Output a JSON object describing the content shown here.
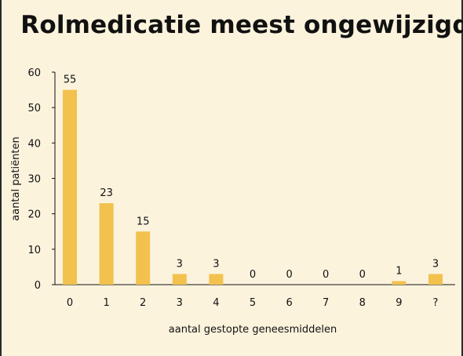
{
  "chart_data": {
    "type": "bar",
    "title": "Rolmedicatie meest ongewijzigd",
    "xlabel": "aantal gestopte geneesmiddelen",
    "ylabel": "aantal patiënten",
    "categories": [
      "0",
      "1",
      "2",
      "3",
      "4",
      "5",
      "6",
      "7",
      "8",
      "9",
      "?"
    ],
    "values": [
      55,
      23,
      15,
      3,
      3,
      0,
      0,
      0,
      0,
      1,
      3
    ],
    "ylim": [
      0,
      60
    ],
    "yticks": [
      0,
      10,
      20,
      30,
      40,
      50,
      60
    ],
    "bar_color": "#f2c14e",
    "grid": false,
    "legend": "none"
  }
}
